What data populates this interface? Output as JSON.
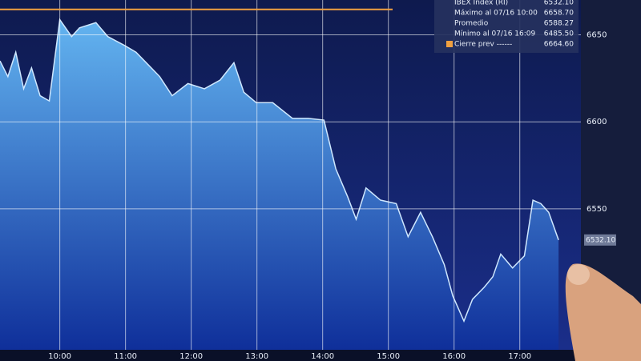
{
  "chart_data": {
    "type": "area",
    "x": [
      9.09,
      9.21,
      9.33,
      9.45,
      9.57,
      9.7,
      9.84,
      10.0,
      10.18,
      10.3,
      10.55,
      10.73,
      10.98,
      11.16,
      11.34,
      11.52,
      11.71,
      11.95,
      12.2,
      12.44,
      12.65,
      12.8,
      12.99,
      13.24,
      13.54,
      13.78,
      14.02,
      14.2,
      14.38,
      14.51,
      14.66,
      14.88,
      15.12,
      15.3,
      15.49,
      15.67,
      15.85,
      15.98,
      16.15,
      16.28,
      16.46,
      16.59,
      16.71,
      16.89,
      17.07,
      17.2,
      17.32,
      17.44,
      17.59
    ],
    "series": [
      {
        "name": "IBEX Index (RI)",
        "color": "#63b4f0",
        "values": [
          6635,
          6626,
          6640,
          6619,
          6631,
          6615,
          6612,
          6658.7,
          6649,
          6654,
          6657,
          6649,
          6644,
          6640,
          6633,
          6626,
          6615,
          6622,
          6619,
          6624,
          6634,
          6617,
          6611,
          6611,
          6602,
          6602,
          6601,
          6573,
          6557,
          6544,
          6562,
          6555,
          6553,
          6534,
          6548,
          6534,
          6518,
          6500,
          6485.5,
          6498,
          6505,
          6511,
          6524,
          6516,
          6523,
          6555,
          6553,
          6548,
          6532.1
        ]
      }
    ],
    "xlim": [
      9.09,
      17.93
    ],
    "xticks": [
      {
        "value": 10,
        "label": "10:00"
      },
      {
        "value": 11,
        "label": "11:00"
      },
      {
        "value": 12,
        "label": "12:00"
      },
      {
        "value": 13,
        "label": "13:00"
      },
      {
        "value": 14,
        "label": "14:00"
      },
      {
        "value": 15,
        "label": "15:00"
      },
      {
        "value": 16,
        "label": "16:00"
      },
      {
        "value": 17,
        "label": "17:00"
      }
    ],
    "ylim": [
      6469,
      6670
    ],
    "yticks": [
      6550,
      6600,
      6650
    ],
    "grid": true,
    "reference_line": {
      "value": 6664.6,
      "color": "#f0a040"
    },
    "last_label": "6532.10",
    "legend": [
      {
        "name": "IBEX Index (RI)",
        "value": "6532.10"
      },
      {
        "name": "Máximo al 07/16 10:00",
        "value": "6658.70"
      },
      {
        "name": "Promedio",
        "value": "6588.27"
      },
      {
        "name": "Mínimo al 07/16 16:09",
        "value": "6485.50"
      },
      {
        "name": "Cierre prev ------",
        "value": "6664.60"
      }
    ]
  }
}
